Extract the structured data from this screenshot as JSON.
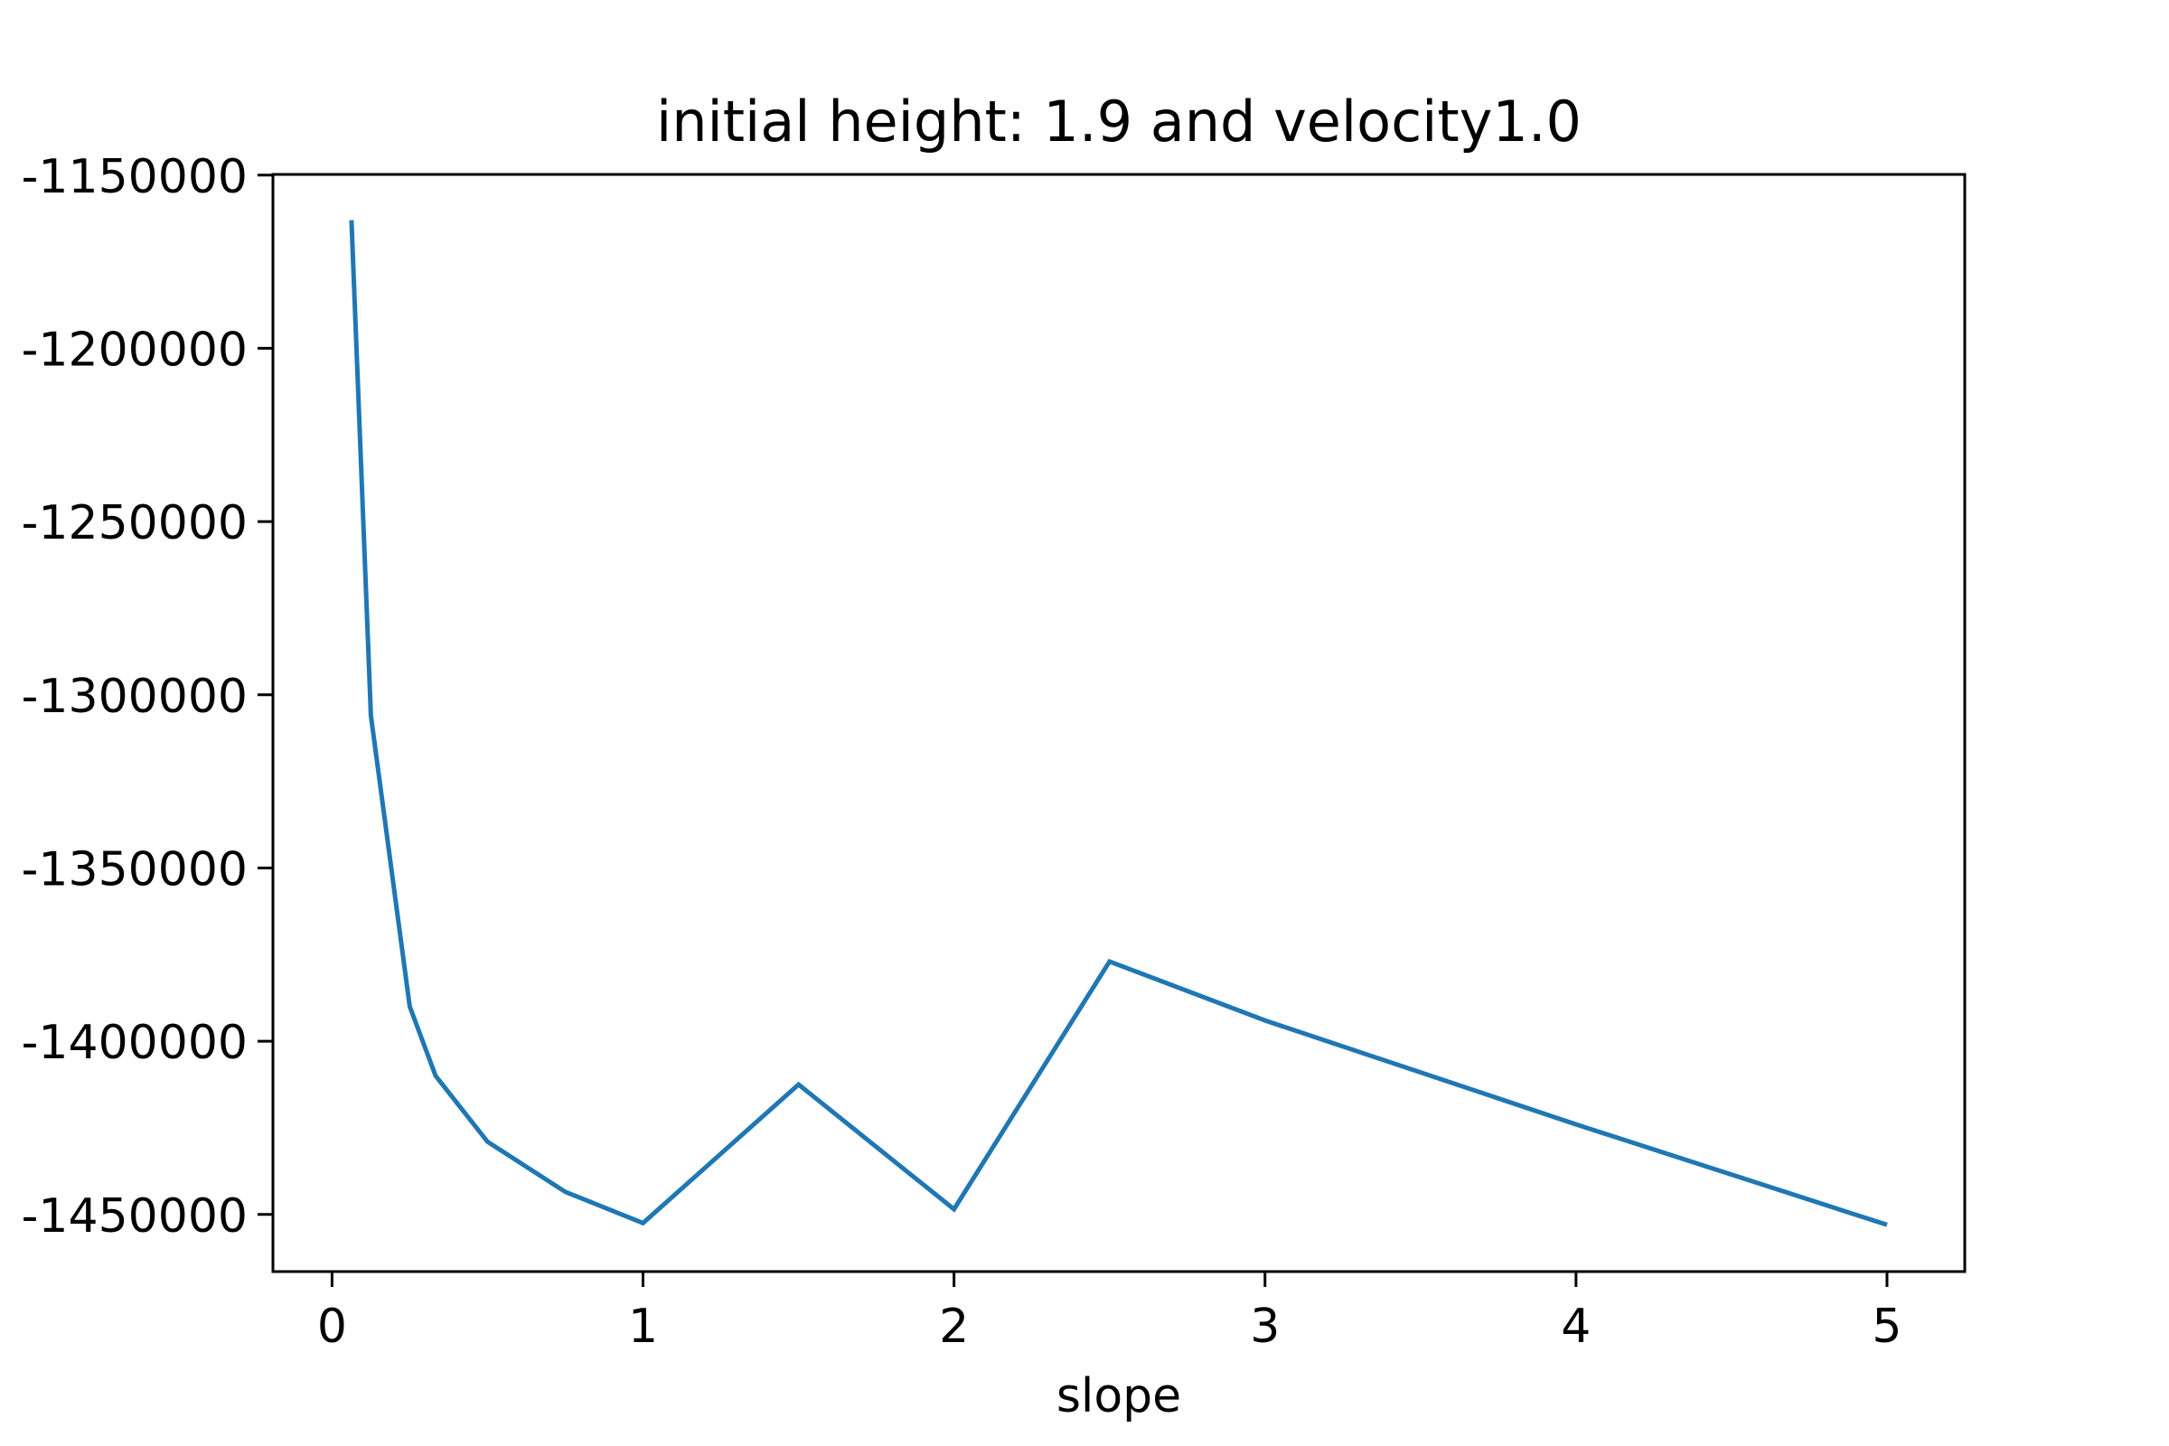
{
  "chart_data": {
    "type": "line",
    "title": "initial height: 1.9 and velocity1.0",
    "xlabel": "slope",
    "ylabel": "",
    "xlim": [
      -0.19,
      5.25
    ],
    "ylim": [
      -1466500,
      -1149800
    ],
    "xticks": [
      {
        "value": 0,
        "label": "0"
      },
      {
        "value": 1,
        "label": "1"
      },
      {
        "value": 2,
        "label": "2"
      },
      {
        "value": 3,
        "label": "3"
      },
      {
        "value": 4,
        "label": "4"
      },
      {
        "value": 5,
        "label": "5"
      }
    ],
    "yticks": [
      {
        "value": -1150000,
        "label": "-1150000"
      },
      {
        "value": -1200000,
        "label": "-1200000"
      },
      {
        "value": -1250000,
        "label": "-1250000"
      },
      {
        "value": -1300000,
        "label": "-1300000"
      },
      {
        "value": -1350000,
        "label": "-1350000"
      },
      {
        "value": -1400000,
        "label": "-1400000"
      },
      {
        "value": -1450000,
        "label": "-1450000"
      }
    ],
    "grid": false,
    "series": [
      {
        "color": "#1f77b4",
        "x": [
          0.0625,
          0.125,
          0.25,
          0.333,
          0.5,
          0.75,
          1.0,
          1.5,
          2.0,
          2.5,
          3.0,
          4.0,
          5.0
        ],
        "y": [
          -1163000,
          -1306000,
          -1390000,
          -1410000,
          -1429000,
          -1443500,
          -1452500,
          -1412500,
          -1448500,
          -1377000,
          -1394000,
          -1424000,
          -1453000
        ]
      }
    ]
  }
}
